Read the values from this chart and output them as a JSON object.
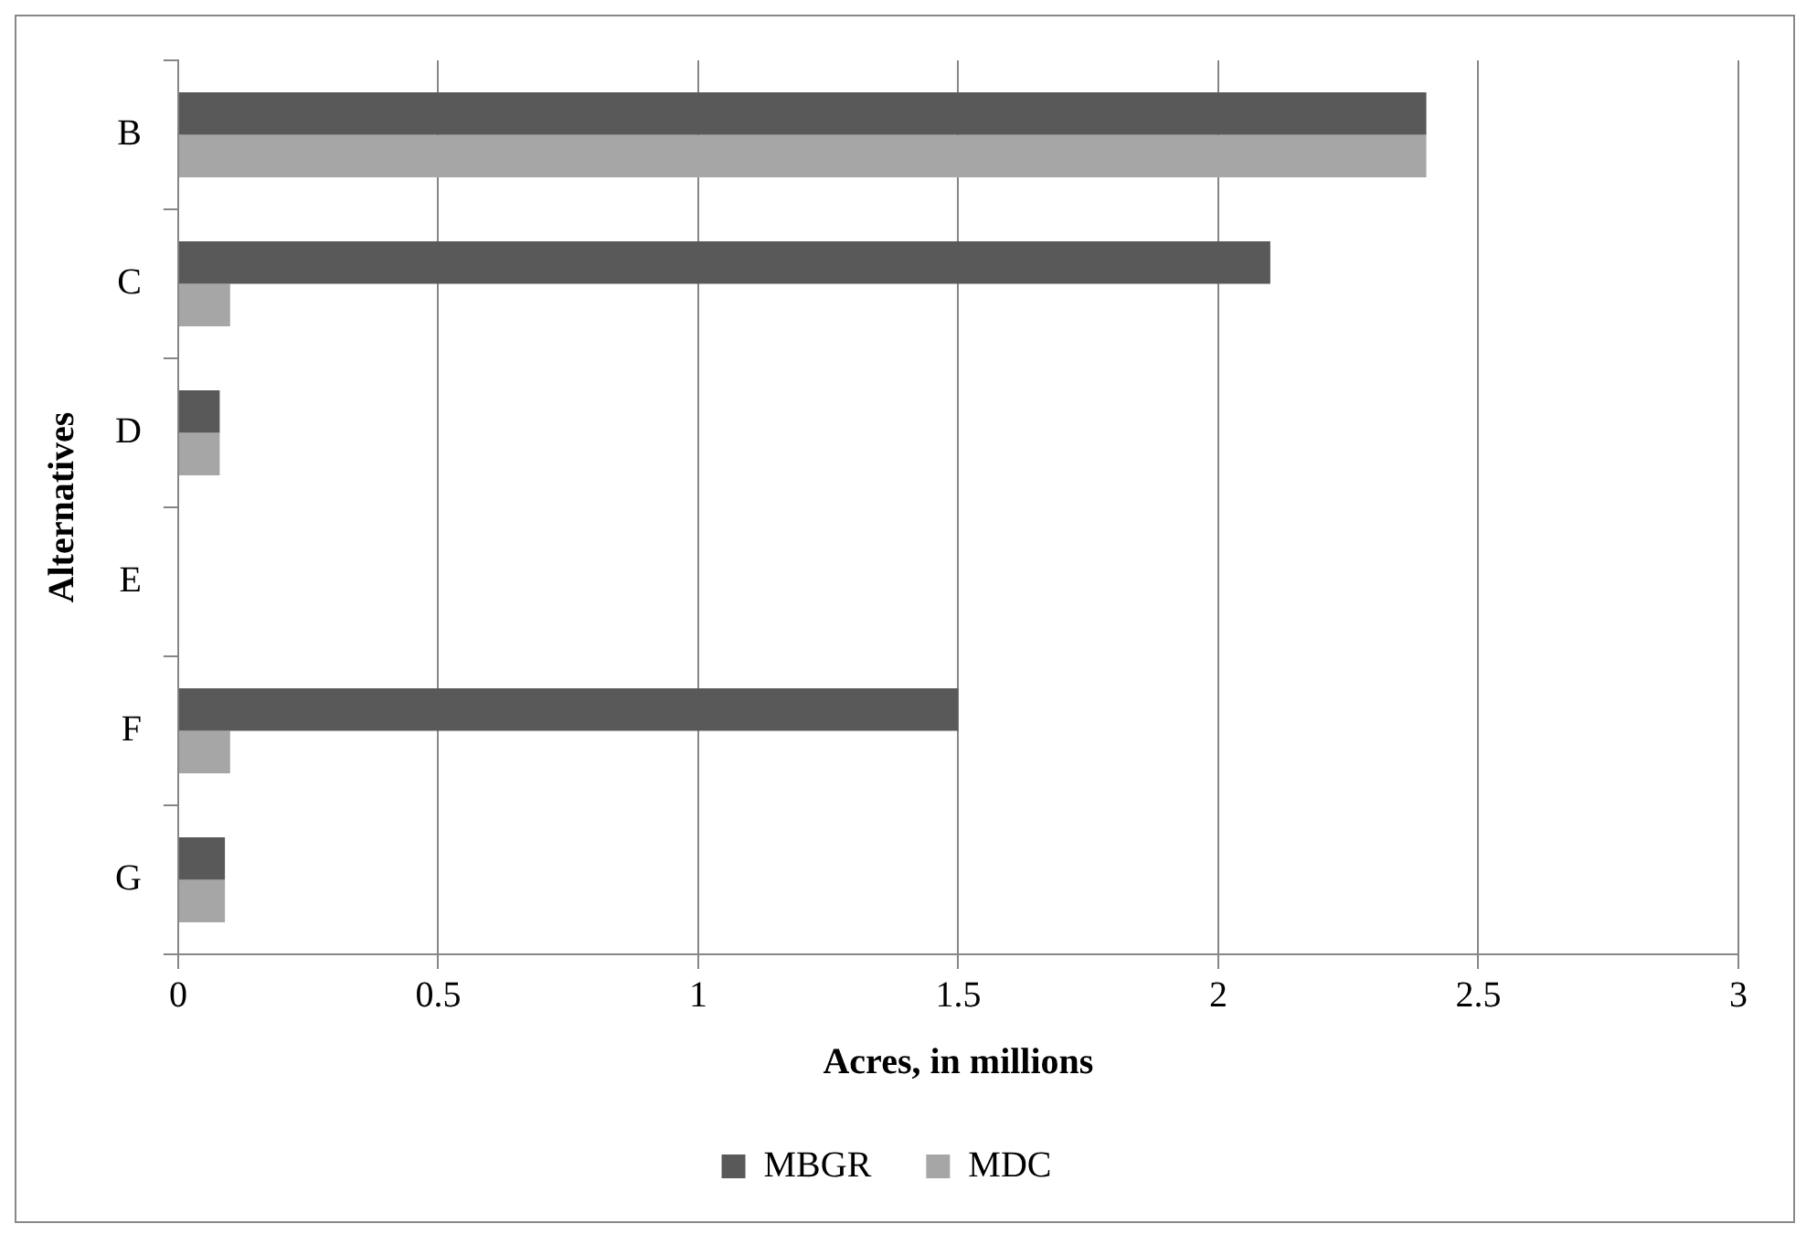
{
  "chart_data": {
    "type": "bar",
    "orientation": "horizontal",
    "xlabel": "Acres, in millions",
    "ylabel": "Alternatives",
    "categories": [
      "B",
      "C",
      "D",
      "E",
      "F",
      "G"
    ],
    "series": [
      {
        "name": "MBGR",
        "color": "#595959",
        "values": [
          2.4,
          2.1,
          0.08,
          0,
          1.5,
          0.09
        ]
      },
      {
        "name": "MDC",
        "color": "#a6a6a6",
        "values": [
          2.4,
          0.1,
          0.08,
          0,
          0.1,
          0.09
        ]
      }
    ],
    "xlim": [
      0,
      3
    ],
    "xticks": [
      0,
      0.5,
      1,
      1.5,
      2,
      2.5,
      3
    ],
    "grid": "x",
    "legend": "bottom"
  }
}
